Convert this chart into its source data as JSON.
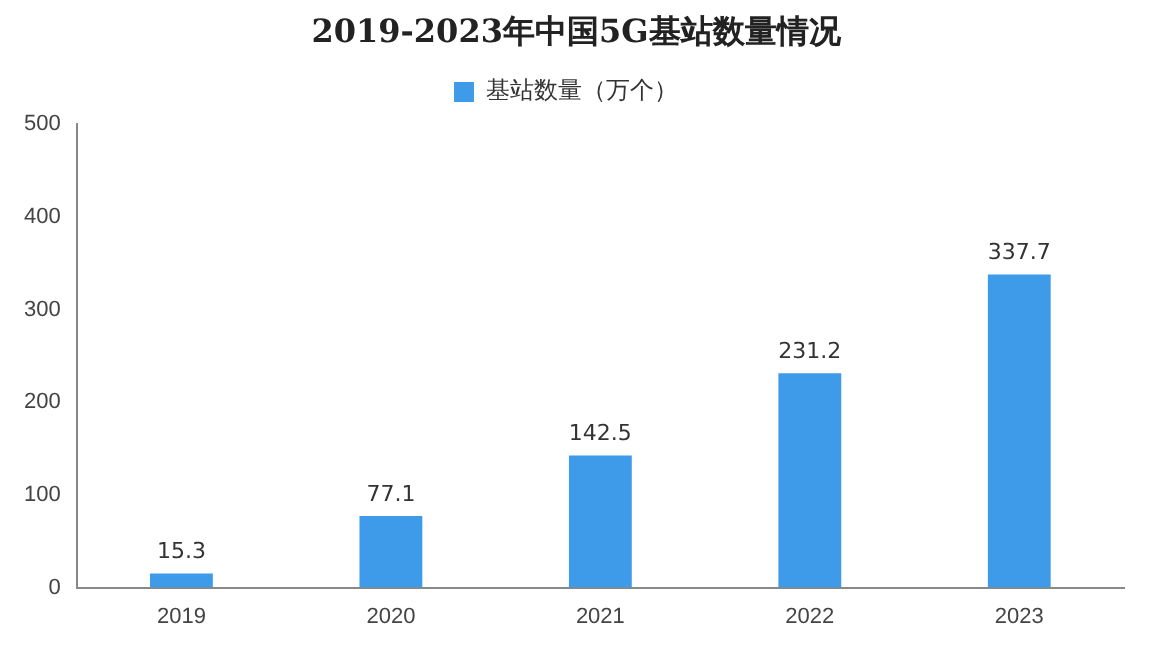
{
  "chart_data": {
    "type": "bar",
    "title": "2019-2023年中国5G基站数量情况",
    "categories": [
      "2019",
      "2020",
      "2021",
      "2022",
      "2023"
    ],
    "series": [
      {
        "name": "基站数量（万个）",
        "color": "#3d9be9",
        "values": [
          15.3,
          77.1,
          142.5,
          231.2,
          337.7
        ]
      }
    ],
    "ylim": [
      0,
      500
    ],
    "yticks": [
      0,
      100,
      200,
      300,
      400,
      500
    ],
    "grid": false,
    "legend": "top",
    "data_labels": true
  }
}
